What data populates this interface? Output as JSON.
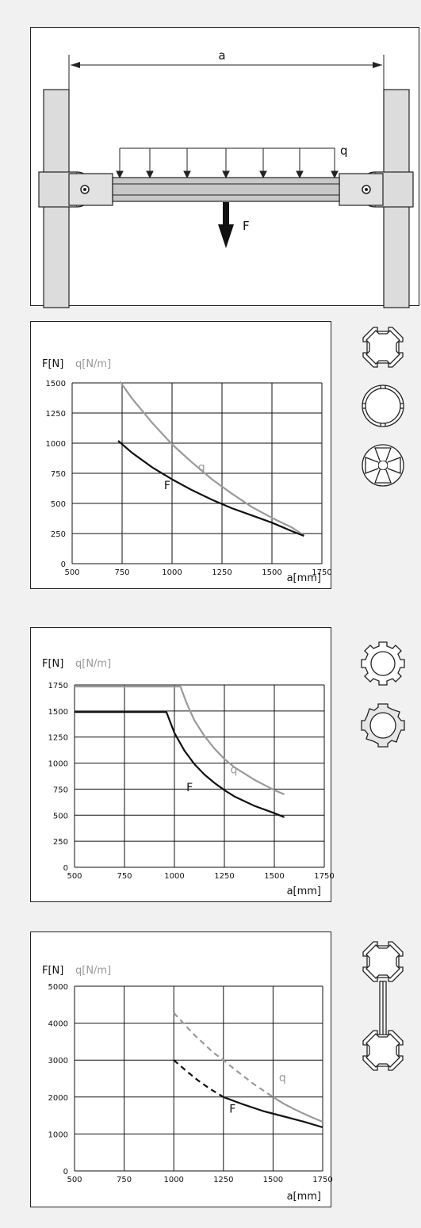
{
  "diagram": {
    "dimension_label": "a",
    "load_label": "q",
    "force_label": "F"
  },
  "charts_common": {
    "y_label_F": "F[N]",
    "y_label_q": "q[N/m]",
    "x_label": "a[mm]",
    "colors": {
      "F": "#111111",
      "q": "#9a9a9a"
    }
  },
  "chart_data": [
    {
      "type": "line",
      "xlabel": "a[mm]",
      "ylabel": "F[N]",
      "xlim": [
        500,
        1750
      ],
      "ylim": [
        0,
        1500
      ],
      "x_ticks": [
        "500",
        "750",
        "1000",
        "1250",
        "1500",
        "1750"
      ],
      "y_ticks": [
        "0",
        "250",
        "500",
        "750",
        "1000",
        "1250",
        "1500"
      ],
      "grid": true,
      "profile_icons": [
        "profile-square-4slot-icon",
        "profile-round-tube-icon",
        "profile-cross-hollow-icon"
      ],
      "series": [
        {
          "name": "q",
          "color": "#9a9a9a",
          "dashed": false,
          "x": [
            740,
            800,
            900,
            1000,
            1100,
            1200,
            1300,
            1400,
            1500,
            1600,
            1660
          ],
          "y": [
            1510,
            1370,
            1170,
            990,
            840,
            700,
            580,
            470,
            380,
            300,
            235
          ]
        },
        {
          "name": "F",
          "color": "#111111",
          "dashed": false,
          "x": [
            730,
            800,
            900,
            1000,
            1100,
            1200,
            1300,
            1400,
            1500,
            1600,
            1660
          ],
          "y": [
            1020,
            920,
            800,
            700,
            610,
            530,
            460,
            400,
            340,
            270,
            230
          ]
        }
      ],
      "annotations": [
        {
          "text": "q",
          "x": 1130,
          "y": 770
        },
        {
          "text": "F",
          "x": 960,
          "y": 620
        }
      ]
    },
    {
      "type": "line",
      "xlabel": "a[mm]",
      "ylabel": "F[N]",
      "xlim": [
        500,
        1750
      ],
      "ylim": [
        0,
        1750
      ],
      "x_ticks": [
        "500",
        "750",
        "1000",
        "1250",
        "1500",
        "1750"
      ],
      "y_ticks": [
        "0",
        "250",
        "500",
        "750",
        "1000",
        "1250",
        "1500",
        "1750"
      ],
      "grid": true,
      "profile_icons": [
        "profile-gear-ring-icon",
        "profile-slotted-ring-icon"
      ],
      "series": [
        {
          "name": "q",
          "color": "#9a9a9a",
          "dashed": false,
          "x": [
            500,
            1030,
            1060,
            1100,
            1150,
            1200,
            1250,
            1300,
            1400,
            1500,
            1550
          ],
          "y": [
            1735,
            1735,
            1580,
            1410,
            1260,
            1140,
            1040,
            960,
            840,
            740,
            700
          ]
        },
        {
          "name": "F",
          "color": "#111111",
          "dashed": false,
          "x": [
            500,
            960,
            1000,
            1050,
            1100,
            1150,
            1200,
            1250,
            1300,
            1400,
            1500,
            1550
          ],
          "y": [
            1490,
            1490,
            1290,
            1120,
            990,
            890,
            810,
            740,
            680,
            590,
            520,
            480
          ]
        }
      ],
      "annotations": [
        {
          "text": "q",
          "x": 1280,
          "y": 900
        },
        {
          "text": "F",
          "x": 1060,
          "y": 730
        }
      ]
    },
    {
      "type": "line",
      "xlabel": "a[mm]",
      "ylabel": "F[N]",
      "xlim": [
        500,
        1750
      ],
      "ylim": [
        0,
        5000
      ],
      "x_ticks": [
        "500",
        "750",
        "1000",
        "1250",
        "1500",
        "1750"
      ],
      "y_ticks": [
        "0",
        "1000",
        "2000",
        "3000",
        "4000",
        "5000"
      ],
      "grid": true,
      "profile_icons": [
        "profile-double-square-icon"
      ],
      "series": [
        {
          "name": "q",
          "color": "#9a9a9a",
          "dashed": true,
          "x": [
            1000,
            1100,
            1200,
            1250,
            1300,
            1400,
            1500
          ],
          "y": [
            4280,
            3700,
            3200,
            3000,
            2780,
            2360,
            2000
          ]
        },
        {
          "name": "q",
          "color": "#9a9a9a",
          "dashed": false,
          "x": [
            1500,
            1550,
            1600,
            1650,
            1700,
            1750
          ],
          "y": [
            2000,
            1830,
            1690,
            1560,
            1440,
            1330
          ]
        },
        {
          "name": "F",
          "color": "#111111",
          "dashed": true,
          "x": [
            1000,
            1060,
            1120,
            1180,
            1250
          ],
          "y": [
            3000,
            2720,
            2460,
            2230,
            2000
          ]
        },
        {
          "name": "F",
          "color": "#111111",
          "dashed": false,
          "x": [
            1250,
            1350,
            1450,
            1550,
            1650,
            1750
          ],
          "y": [
            2000,
            1800,
            1620,
            1480,
            1340,
            1180
          ]
        }
      ],
      "annotations": [
        {
          "text": "q",
          "x": 1530,
          "y": 2420
        },
        {
          "text": "F",
          "x": 1280,
          "y": 1580
        }
      ]
    }
  ]
}
